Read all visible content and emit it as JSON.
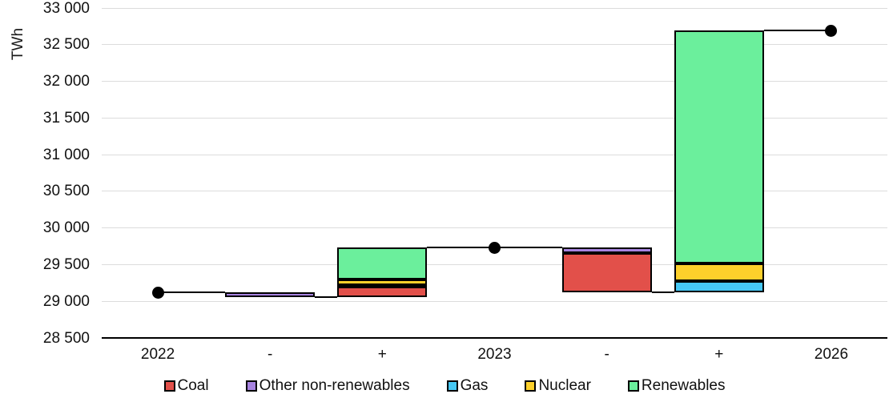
{
  "chart_data": {
    "type": "waterfall",
    "title": "",
    "ylabel": "TWh",
    "unit": "TWh",
    "ylim": [
      28500,
      33000
    ],
    "ytick_step": 500,
    "ytick_labels": [
      "28 500",
      "29 000",
      "29 500",
      "30 000",
      "30 500",
      "31 000",
      "31 500",
      "32 000",
      "32 500",
      "33 000"
    ],
    "grid": true,
    "legend_position": "bottom",
    "categories": [
      "2022",
      "-",
      "+",
      "2023",
      "-",
      "+",
      "2026"
    ],
    "legend": [
      {
        "label": "Coal",
        "color": "#E2504A"
      },
      {
        "label": "Other non-renewables",
        "color": "#A783E0"
      },
      {
        "label": "Gas",
        "color": "#46C8F5"
      },
      {
        "label": "Nuclear",
        "color": "#FDD02B"
      },
      {
        "label": "Renewables",
        "color": "#6BEF9C"
      }
    ],
    "totals": [
      {
        "category": "2022",
        "slot": 0,
        "value": 29120
      },
      {
        "category": "2023",
        "slot": 3,
        "value": 29730
      },
      {
        "category": "2026",
        "slot": 6,
        "value": 32690
      }
    ],
    "bars": [
      {
        "slot": 1,
        "kind": "decrease",
        "base": 29055,
        "segments": [
          {
            "name": "Other non-renewables",
            "value": 65
          }
        ]
      },
      {
        "slot": 2,
        "kind": "increase",
        "base": 29055,
        "segments": [
          {
            "name": "Coal",
            "value": 150
          },
          {
            "name": "Gas",
            "value": 20
          },
          {
            "name": "Nuclear",
            "value": 75
          },
          {
            "name": "Renewables",
            "value": 430
          }
        ]
      },
      {
        "slot": 4,
        "kind": "decrease",
        "base": 29125,
        "segments": [
          {
            "name": "Coal",
            "value": 530
          },
          {
            "name": "Other non-renewables",
            "value": 75
          }
        ]
      },
      {
        "slot": 5,
        "kind": "increase",
        "base": 29125,
        "segments": [
          {
            "name": "Gas",
            "value": 155
          },
          {
            "name": "Nuclear",
            "value": 240
          },
          {
            "name": "Renewables",
            "value": 3170
          }
        ]
      }
    ],
    "style_colors": {
      "axis": "#000000",
      "gridline": "#dcdcdc",
      "connector": "#000000",
      "dot": "#000000",
      "bar_border": "#000000"
    }
  }
}
